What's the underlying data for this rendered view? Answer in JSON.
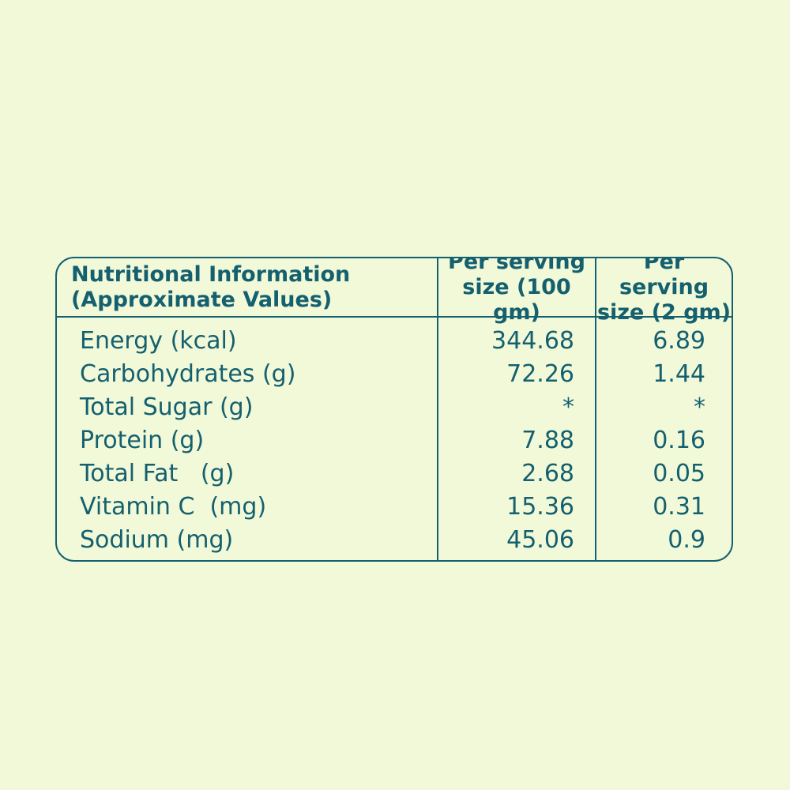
{
  "colors": {
    "background": "#f1f9d9",
    "ink": "#15606f"
  },
  "table": {
    "header": {
      "col1": "Nutritional Information\n(Approximate Values)",
      "col2": "Per serving\nsize (100 gm)",
      "col3": "Per serving\nsize (2 gm)"
    },
    "rows": [
      {
        "label": "Energy (kcal)",
        "per_100gm": "344.68",
        "per_2gm": "6.89"
      },
      {
        "label": "Carbohydrates (g)",
        "per_100gm": "72.26",
        "per_2gm": "1.44"
      },
      {
        "label": "Total Sugar (g)",
        "per_100gm": "*",
        "per_2gm": "*"
      },
      {
        "label": "Protein (g)",
        "per_100gm": "7.88",
        "per_2gm": "0.16"
      },
      {
        "label": "Total Fat   (g)",
        "per_100gm": "2.68",
        "per_2gm": "0.05"
      },
      {
        "label": "Vitamin C  (mg)",
        "per_100gm": "15.36",
        "per_2gm": "0.31"
      },
      {
        "label": "Sodium (mg)",
        "per_100gm": "45.06",
        "per_2gm": "0.9"
      }
    ]
  }
}
